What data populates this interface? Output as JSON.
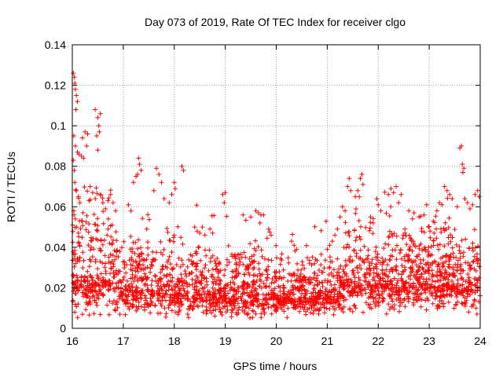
{
  "chart_data": {
    "type": "scatter",
    "title": "Day 073 of 2019, Rate Of TEC Index for receiver clgo",
    "xlabel": "GPS time / hours",
    "ylabel": "ROTI / TECUs",
    "xlim": [
      16,
      24
    ],
    "ylim": [
      0,
      0.14
    ],
    "x_ticks": [
      16,
      17,
      18,
      19,
      20,
      21,
      22,
      23,
      24
    ],
    "x_tick_labels": [
      "16",
      "17",
      "18",
      "19",
      "20",
      "21",
      "22",
      "23",
      "24"
    ],
    "y_ticks": [
      0,
      0.02,
      0.04,
      0.06,
      0.08,
      0.1,
      0.12,
      0.14
    ],
    "y_tick_labels": [
      "0",
      "0.02",
      "0.04",
      "0.06",
      "0.08",
      "0.1",
      "0.12",
      "0.14"
    ],
    "grid": true,
    "marker": "+",
    "color": "#ff0000",
    "series": [
      {
        "name": "ROTI",
        "points": [
          [
            16.02,
            0.126
          ],
          [
            16.04,
            0.124
          ],
          [
            16.05,
            0.121
          ],
          [
            16.06,
            0.118
          ],
          [
            16.08,
            0.115
          ],
          [
            16.1,
            0.112
          ],
          [
            16.07,
            0.108
          ],
          [
            16.03,
            0.095
          ],
          [
            16.06,
            0.09
          ],
          [
            16.1,
            0.087
          ],
          [
            16.13,
            0.086
          ],
          [
            16.18,
            0.085
          ],
          [
            16.22,
            0.084
          ],
          [
            16.2,
            0.094
          ],
          [
            16.25,
            0.097
          ],
          [
            16.3,
            0.096
          ],
          [
            16.28,
            0.09
          ],
          [
            16.02,
            0.083
          ],
          [
            16.04,
            0.078
          ],
          [
            16.05,
            0.072
          ],
          [
            16.08,
            0.068
          ],
          [
            16.12,
            0.065
          ],
          [
            16.15,
            0.062
          ],
          [
            16.03,
            0.058
          ],
          [
            16.06,
            0.054
          ],
          [
            16.09,
            0.05
          ],
          [
            16.12,
            0.047
          ],
          [
            16.45,
            0.108
          ],
          [
            16.5,
            0.104
          ],
          [
            16.52,
            0.1
          ],
          [
            16.55,
            0.106
          ],
          [
            16.53,
            0.097
          ],
          [
            16.48,
            0.095
          ],
          [
            16.5,
            0.088
          ],
          [
            16.35,
            0.07
          ],
          [
            16.4,
            0.067
          ],
          [
            16.45,
            0.064
          ],
          [
            16.55,
            0.066
          ],
          [
            16.6,
            0.062
          ],
          [
            16.65,
            0.059
          ],
          [
            16.7,
            0.063
          ],
          [
            16.75,
            0.066
          ],
          [
            16.8,
            0.062
          ],
          [
            16.85,
            0.058
          ],
          [
            17.2,
            0.072
          ],
          [
            17.25,
            0.075
          ],
          [
            17.3,
            0.084
          ],
          [
            17.32,
            0.081
          ],
          [
            17.35,
            0.078
          ],
          [
            17.28,
            0.076
          ],
          [
            17.1,
            0.061
          ],
          [
            17.15,
            0.058
          ],
          [
            17.65,
            0.079
          ],
          [
            17.7,
            0.076
          ],
          [
            17.75,
            0.072
          ],
          [
            17.6,
            0.068
          ],
          [
            17.8,
            0.064
          ],
          [
            17.9,
            0.062
          ],
          [
            17.95,
            0.066
          ],
          [
            18.0,
            0.072
          ],
          [
            18.02,
            0.069
          ],
          [
            18.15,
            0.08
          ],
          [
            18.18,
            0.078
          ],
          [
            18.4,
            0.05
          ],
          [
            18.45,
            0.048
          ],
          [
            18.5,
            0.047
          ],
          [
            18.55,
            0.05
          ],
          [
            18.6,
            0.046
          ],
          [
            18.7,
            0.049
          ],
          [
            18.75,
            0.047
          ],
          [
            18.95,
            0.066
          ],
          [
            19.0,
            0.067
          ],
          [
            18.98,
            0.062
          ],
          [
            19.35,
            0.056
          ],
          [
            19.5,
            0.055
          ],
          [
            19.6,
            0.058
          ],
          [
            19.65,
            0.057
          ],
          [
            19.7,
            0.056
          ],
          [
            19.75,
            0.056
          ],
          [
            19.68,
            0.052
          ],
          [
            19.85,
            0.049
          ],
          [
            19.9,
            0.046
          ],
          [
            20.3,
            0.043
          ],
          [
            20.35,
            0.041
          ],
          [
            20.4,
            0.039
          ],
          [
            21.0,
            0.039
          ],
          [
            21.05,
            0.041
          ],
          [
            21.1,
            0.043
          ],
          [
            21.15,
            0.046
          ],
          [
            21.2,
            0.049
          ],
          [
            21.25,
            0.055
          ],
          [
            21.3,
            0.06
          ],
          [
            21.35,
            0.058
          ],
          [
            21.4,
            0.07
          ],
          [
            21.43,
            0.074
          ],
          [
            21.46,
            0.068
          ],
          [
            21.55,
            0.065
          ],
          [
            21.6,
            0.068
          ],
          [
            21.65,
            0.074
          ],
          [
            21.68,
            0.076
          ],
          [
            21.7,
            0.071
          ],
          [
            21.85,
            0.055
          ],
          [
            21.9,
            0.052
          ],
          [
            22.0,
            0.061
          ],
          [
            22.05,
            0.058
          ],
          [
            22.2,
            0.066
          ],
          [
            22.25,
            0.069
          ],
          [
            22.3,
            0.067
          ],
          [
            22.35,
            0.07
          ],
          [
            22.4,
            0.062
          ],
          [
            22.45,
            0.066
          ],
          [
            22.6,
            0.058
          ],
          [
            22.7,
            0.057
          ],
          [
            22.8,
            0.055
          ],
          [
            22.9,
            0.056
          ],
          [
            22.95,
            0.061
          ],
          [
            23.15,
            0.058
          ],
          [
            23.2,
            0.062
          ],
          [
            23.25,
            0.061
          ],
          [
            23.3,
            0.07
          ],
          [
            23.35,
            0.068
          ],
          [
            23.4,
            0.066
          ],
          [
            23.45,
            0.064
          ],
          [
            23.55,
            0.06
          ],
          [
            23.6,
            0.089
          ],
          [
            23.63,
            0.09
          ],
          [
            23.65,
            0.081
          ],
          [
            23.68,
            0.079
          ],
          [
            23.66,
            0.077
          ],
          [
            23.7,
            0.064
          ],
          [
            23.75,
            0.062
          ],
          [
            23.8,
            0.059
          ],
          [
            23.85,
            0.061
          ],
          [
            23.9,
            0.066
          ],
          [
            23.95,
            0.068
          ],
          [
            23.98,
            0.065
          ]
        ]
      }
    ],
    "generated_points": {
      "description": "dense ROTI cloud between hour 16 and 24",
      "count": 2600,
      "seed": 73
    }
  }
}
